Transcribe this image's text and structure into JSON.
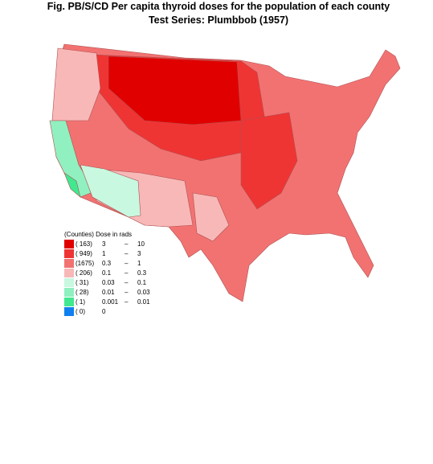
{
  "title": "Fig. PB/S/CD   Per capita thyroid doses for the population of each county",
  "subtitle": "Test Series:  Plumbbob (1957)",
  "legend": {
    "header": "(Counties) Dose in rads",
    "rows": [
      {
        "count": "( 163)",
        "low": "3",
        "dash": "–",
        "high": "10",
        "color": "#e00000"
      },
      {
        "count": "( 949)",
        "low": "1",
        "dash": "–",
        "high": "3",
        "color": "#ef3434"
      },
      {
        "count": "(1675)",
        "low": "0.3",
        "dash": "–",
        "high": "1",
        "color": "#f27272"
      },
      {
        "count": "( 206)",
        "low": "0.1",
        "dash": "–",
        "high": "0.3",
        "color": "#f8b8b8"
      },
      {
        "count": "(  31)",
        "low": "0.03",
        "dash": "–",
        "high": "0.1",
        "color": "#c8f8e0"
      },
      {
        "count": "(  28)",
        "low": "0.01",
        "dash": "–",
        "high": "0.03",
        "color": "#90f0c0"
      },
      {
        "count": "(   1)",
        "low": "0.001",
        "dash": "–",
        "high": "0.01",
        "color": "#40e890"
      },
      {
        "count": "(   0)",
        "low": "0",
        "color": "#1080f0"
      }
    ]
  }
}
